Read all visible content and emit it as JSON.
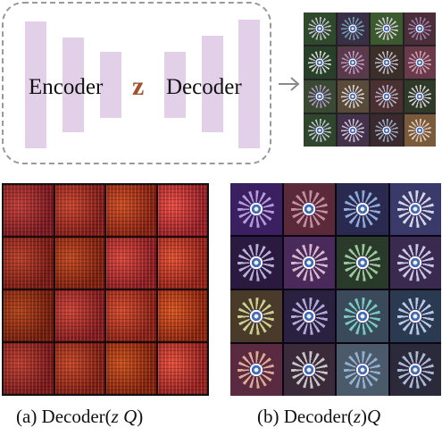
{
  "diagram": {
    "encoder_label": "Encoder",
    "latent_label": "z",
    "decoder_label": "Decoder"
  },
  "captions": {
    "a": {
      "prefix": "(a) Decoder(",
      "var1": "z",
      "sep": " ",
      "var2": "Q",
      "suffix": ")"
    },
    "b": {
      "prefix": "(b) Decoder(",
      "var1": "z",
      "suffix": ")",
      "var2": "Q"
    }
  },
  "colors": {
    "bar_fill": "#e2d0e8",
    "latent_z": "#a0522d",
    "dashed_border": "#9a9a9a",
    "noise_red": "#b3301c"
  }
}
